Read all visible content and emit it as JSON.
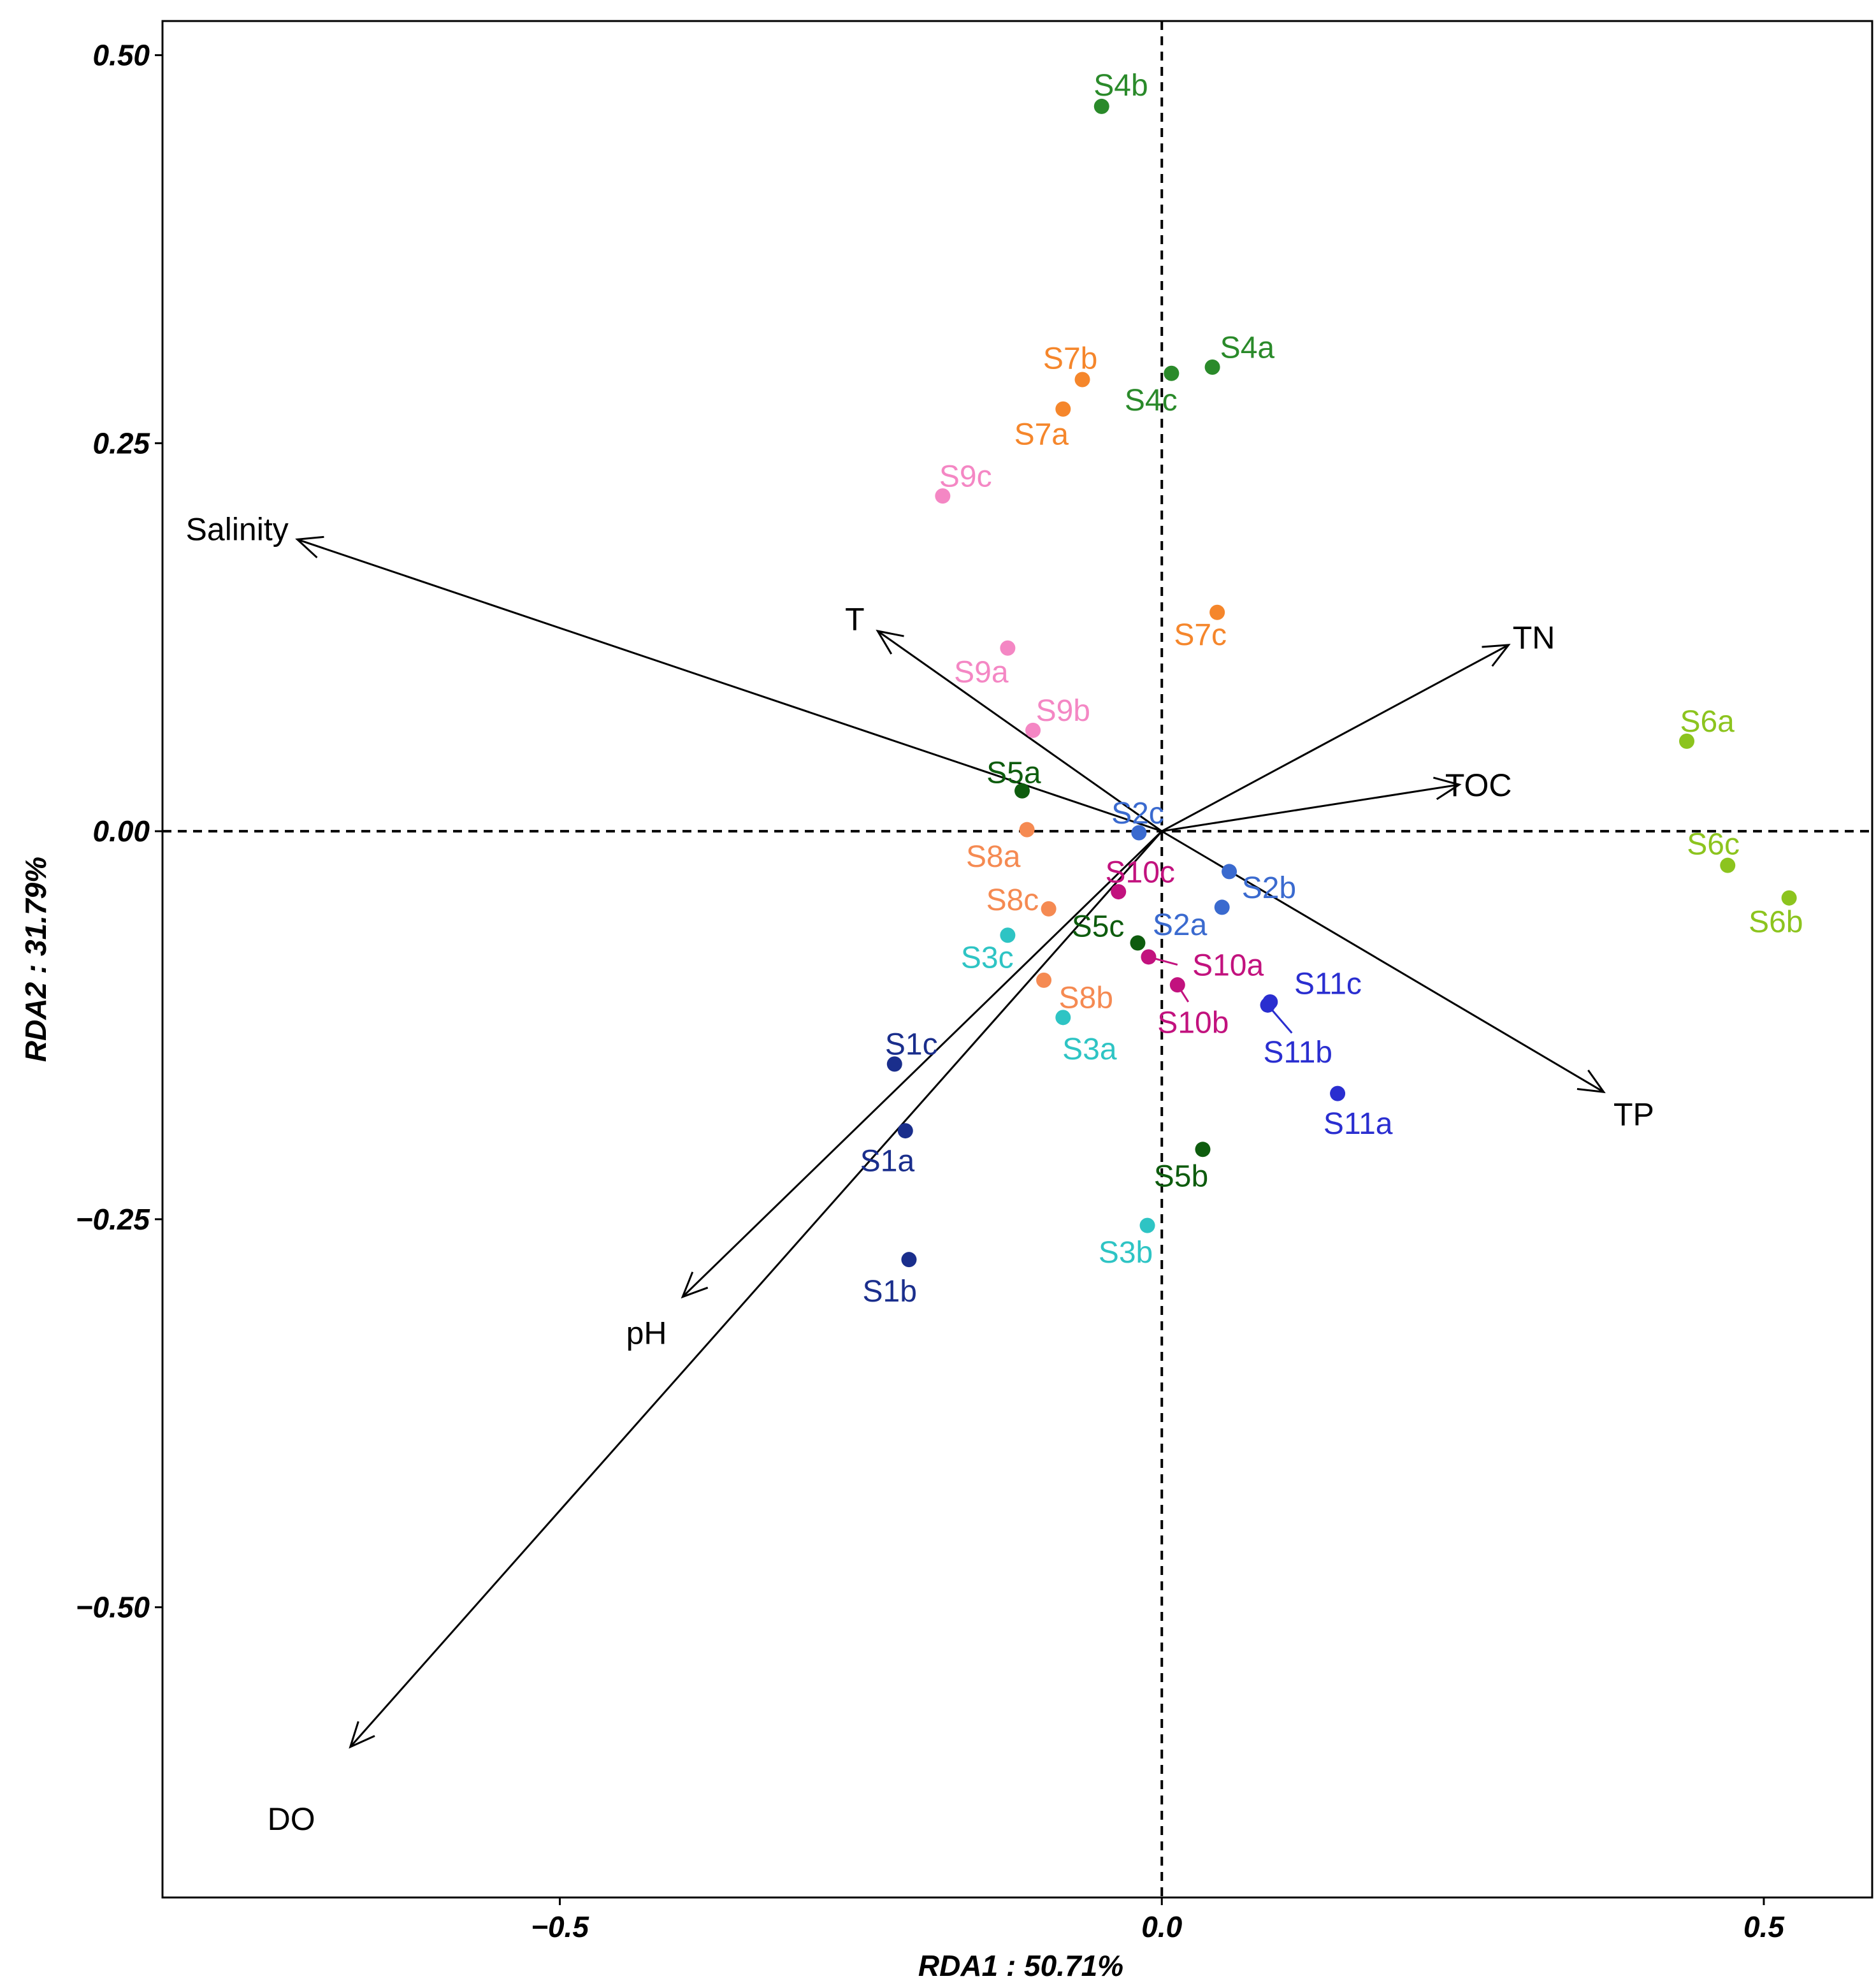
{
  "chart_data": {
    "type": "scatter",
    "xlabel": "RDA1 : 50.71%",
    "ylabel": "RDA2 : 31.79%",
    "xlim": [
      -0.83,
      0.59
    ],
    "ylim": [
      -0.687,
      0.522
    ],
    "x_ticks": [
      {
        "value": -0.5,
        "label": "−0.5"
      },
      {
        "value": 0.0,
        "label": "0.0"
      },
      {
        "value": 0.5,
        "label": "0.5"
      }
    ],
    "y_ticks": [
      {
        "value": 0.5,
        "label": "0.50"
      },
      {
        "value": 0.25,
        "label": "0.25"
      },
      {
        "value": 0.0,
        "label": "0.00"
      },
      {
        "value": -0.25,
        "label": "−0.25"
      },
      {
        "value": -0.5,
        "label": "−0.50"
      }
    ],
    "zero_lines": true,
    "grid": false,
    "arrows": [
      {
        "name": "Salinity",
        "x": -0.718,
        "y": 0.188,
        "lx": -0.768,
        "ly": 0.195
      },
      {
        "name": "T",
        "x": -0.236,
        "y": 0.129,
        "lx": -0.255,
        "ly": 0.137
      },
      {
        "name": "TN",
        "x": 0.288,
        "y": 0.12,
        "lx": 0.309,
        "ly": 0.125
      },
      {
        "name": "TOC",
        "x": 0.247,
        "y": 0.03,
        "lx": 0.263,
        "ly": 0.03
      },
      {
        "name": "TP",
        "x": 0.367,
        "y": -0.168,
        "lx": 0.392,
        "ly": -0.182
      },
      {
        "name": "pH",
        "x": -0.398,
        "y": -0.3,
        "lx": -0.428,
        "ly": -0.323
      },
      {
        "name": "DO",
        "x": -0.674,
        "y": -0.59,
        "lx": -0.723,
        "ly": -0.636
      }
    ],
    "points": [
      {
        "label": "S1a",
        "x": -0.213,
        "y": -0.193,
        "color": "#1A2E8C",
        "lx": -0.228,
        "ly": -0.212
      },
      {
        "label": "S1b",
        "x": -0.21,
        "y": -0.276,
        "color": "#1A2E8C",
        "lx": -0.226,
        "ly": -0.296
      },
      {
        "label": "S1c",
        "x": -0.222,
        "y": -0.15,
        "color": "#1A2E8C",
        "lx": -0.208,
        "ly": -0.137
      },
      {
        "label": "S2a",
        "x": 0.05,
        "y": -0.049,
        "color": "#3A6ACF",
        "lx": 0.015,
        "ly": -0.06
      },
      {
        "label": "S2b",
        "x": 0.056,
        "y": -0.026,
        "color": "#3A6ACF",
        "lx": 0.089,
        "ly": -0.036
      },
      {
        "label": "S2c",
        "x": -0.019,
        "y": -0.001,
        "color": "#3A6ACF",
        "lx": -0.02,
        "ly": 0.012
      },
      {
        "label": "S3a",
        "x": -0.082,
        "y": -0.12,
        "color": "#2EC4C4",
        "lx": -0.06,
        "ly": -0.14
      },
      {
        "label": "S3b",
        "x": -0.012,
        "y": -0.254,
        "color": "#2EC4C4",
        "lx": -0.03,
        "ly": -0.271
      },
      {
        "label": "S3c",
        "x": -0.128,
        "y": -0.067,
        "color": "#2EC4C4",
        "lx": -0.145,
        "ly": -0.081
      },
      {
        "label": "S4a",
        "x": 0.042,
        "y": 0.299,
        "color": "#2A8A2A",
        "lx": 0.071,
        "ly": 0.312
      },
      {
        "label": "S4b",
        "x": -0.05,
        "y": 0.467,
        "color": "#2A8A2A",
        "lx": -0.034,
        "ly": 0.481
      },
      {
        "label": "S4c",
        "x": 0.008,
        "y": 0.295,
        "color": "#2A8A2A",
        "lx": -0.009,
        "ly": 0.278
      },
      {
        "label": "S5a",
        "x": -0.116,
        "y": 0.026,
        "color": "#0E5C0E",
        "lx": -0.123,
        "ly": 0.038
      },
      {
        "label": "S5b",
        "x": 0.034,
        "y": -0.205,
        "color": "#0E5C0E",
        "lx": 0.016,
        "ly": -0.222
      },
      {
        "label": "S5c",
        "x": -0.02,
        "y": -0.072,
        "color": "#0E5C0E",
        "lx": -0.053,
        "ly": -0.061
      },
      {
        "label": "S6a",
        "x": 0.436,
        "y": 0.058,
        "color": "#8CC41E",
        "lx": 0.453,
        "ly": 0.071
      },
      {
        "label": "S6b",
        "x": 0.521,
        "y": -0.043,
        "color": "#8CC41E",
        "lx": 0.51,
        "ly": -0.058
      },
      {
        "label": "S6c",
        "x": 0.47,
        "y": -0.022,
        "color": "#8CC41E",
        "lx": 0.458,
        "ly": -0.008
      },
      {
        "label": "S7a",
        "x": -0.082,
        "y": 0.272,
        "color": "#F5862B",
        "lx": -0.1,
        "ly": 0.256
      },
      {
        "label": "S7b",
        "x": -0.066,
        "y": 0.291,
        "color": "#F5862B",
        "lx": -0.076,
        "ly": 0.305
      },
      {
        "label": "S7c",
        "x": 0.046,
        "y": 0.141,
        "color": "#F5862B",
        "lx": 0.032,
        "ly": 0.127
      },
      {
        "label": "S8a",
        "x": -0.112,
        "y": 0.001,
        "color": "#F58A52",
        "lx": -0.14,
        "ly": -0.016
      },
      {
        "label": "S8b",
        "x": -0.098,
        "y": -0.096,
        "color": "#F58A52",
        "lx": -0.063,
        "ly": -0.107
      },
      {
        "label": "S8c",
        "x": -0.094,
        "y": -0.05,
        "color": "#F58A52",
        "lx": -0.124,
        "ly": -0.044
      },
      {
        "label": "S9a",
        "x": -0.128,
        "y": 0.118,
        "color": "#F487C4",
        "lx": -0.15,
        "ly": 0.103
      },
      {
        "label": "S9b",
        "x": -0.107,
        "y": 0.065,
        "color": "#F487C4",
        "lx": -0.082,
        "ly": 0.078
      },
      {
        "label": "S9c",
        "x": -0.182,
        "y": 0.216,
        "color": "#F487C4",
        "lx": -0.163,
        "ly": 0.229
      },
      {
        "label": "S10a",
        "x": -0.011,
        "y": -0.081,
        "color": "#C2127E",
        "lx": 0.055,
        "ly": -0.086
      },
      {
        "label": "S10b",
        "x": 0.013,
        "y": -0.099,
        "color": "#C2127E",
        "lx": 0.026,
        "ly": -0.123
      },
      {
        "label": "S10c",
        "x": -0.036,
        "y": -0.039,
        "color": "#C2127E",
        "lx": -0.018,
        "ly": -0.026
      },
      {
        "label": "S11a",
        "x": 0.146,
        "y": -0.169,
        "color": "#2A2ED0",
        "lx": 0.163,
        "ly": -0.188
      },
      {
        "label": "S11b",
        "x": 0.088,
        "y": -0.112,
        "color": "#2A2ED0",
        "lx": 0.113,
        "ly": -0.142
      },
      {
        "label": "S11c",
        "x": 0.09,
        "y": -0.11,
        "color": "#2A2ED0",
        "lx": 0.138,
        "ly": -0.098
      }
    ],
    "leaders": [
      {
        "from": "S10a",
        "x1": -0.011,
        "y1": -0.081,
        "x2": 0.013,
        "y2": -0.086
      },
      {
        "from": "S10b",
        "x1": 0.013,
        "y1": -0.099,
        "x2": 0.022,
        "y2": -0.11
      },
      {
        "from": "S11b",
        "x1": 0.088,
        "y1": -0.112,
        "x2": 0.108,
        "y2": -0.13
      }
    ]
  }
}
